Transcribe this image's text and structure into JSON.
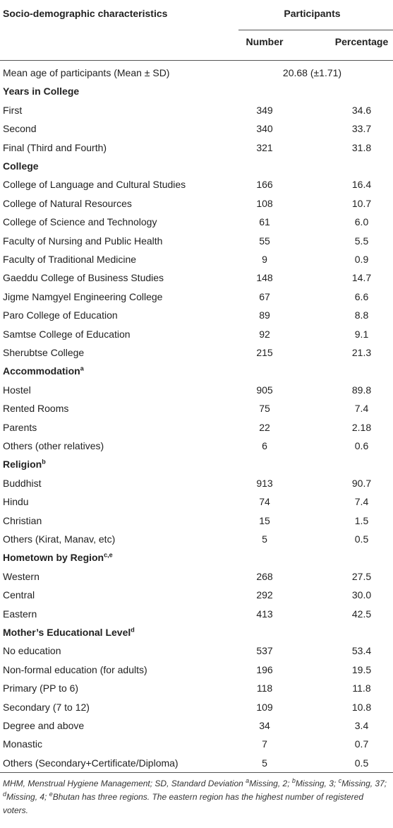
{
  "header": {
    "title": "Socio-demographic characteristics",
    "group": "Participants",
    "col_number": "Number",
    "col_percentage": "Percentage"
  },
  "rows": [
    {
      "label": "Mean age of participants (Mean ± SD)",
      "value": "20.68 (±1.71)"
    },
    {
      "heading": "Years in College"
    },
    {
      "label": "First",
      "number": "349",
      "percentage": "34.6"
    },
    {
      "label": "Second",
      "number": "340",
      "percentage": "33.7"
    },
    {
      "label": "Final (Third and Fourth)",
      "number": "321",
      "percentage": "31.8"
    },
    {
      "heading": "College"
    },
    {
      "label": "College of Language and Cultural Studies",
      "number": "166",
      "percentage": "16.4"
    },
    {
      "label": "College of Natural Resources",
      "number": "108",
      "percentage": "10.7"
    },
    {
      "label": "College of Science and Technology",
      "number": "61",
      "percentage": "6.0"
    },
    {
      "label": "Faculty of Nursing and Public Health",
      "number": "55",
      "percentage": "5.5"
    },
    {
      "label": "Faculty of Traditional Medicine",
      "number": "9",
      "percentage": "0.9"
    },
    {
      "label": "Gaeddu College of Business Studies",
      "number": "148",
      "percentage": "14.7"
    },
    {
      "label": "Jigme Namgyel Engineering College",
      "number": "67",
      "percentage": "6.6"
    },
    {
      "label": "Paro College of Education",
      "number": "89",
      "percentage": "8.8"
    },
    {
      "label": "Samtse College of Education",
      "number": "92",
      "percentage": "9.1"
    },
    {
      "label": "Sherubtse College",
      "number": "215",
      "percentage": "21.3"
    },
    {
      "heading": "Accommodation",
      "sup": "a"
    },
    {
      "label": "Hostel",
      "number": "905",
      "percentage": "89.8"
    },
    {
      "label": "Rented Rooms",
      "number": "75",
      "percentage": "7.4"
    },
    {
      "label": "Parents",
      "number": "22",
      "percentage": "2.18"
    },
    {
      "label": "Others (other relatives)",
      "number": "6",
      "percentage": "0.6"
    },
    {
      "heading": "Religion",
      "sup": "b"
    },
    {
      "label": "Buddhist",
      "number": "913",
      "percentage": "90.7"
    },
    {
      "label": "Hindu",
      "number": "74",
      "percentage": "7.4"
    },
    {
      "label": "Christian",
      "number": "15",
      "percentage": "1.5"
    },
    {
      "label": "Others (Kirat, Manav, etc)",
      "number": "5",
      "percentage": "0.5"
    },
    {
      "heading": "Hometown by Region",
      "sup": "c,e"
    },
    {
      "label": "Western",
      "number": "268",
      "percentage": "27.5"
    },
    {
      "label": "Central",
      "number": "292",
      "percentage": "30.0"
    },
    {
      "label": "Eastern",
      "number": "413",
      "percentage": "42.5"
    },
    {
      "heading": "Mother’s Educational Level",
      "sup": "d"
    },
    {
      "label": "No education",
      "number": "537",
      "percentage": "53.4"
    },
    {
      "label": "Non-formal education (for adults)",
      "number": "196",
      "percentage": "19.5"
    },
    {
      "label": "Primary (PP to 6)",
      "number": "118",
      "percentage": "11.8"
    },
    {
      "label": "Secondary (7 to 12)",
      "number": "109",
      "percentage": "10.8"
    },
    {
      "label": "Degree and above",
      "number": "34",
      "percentage": "3.4"
    },
    {
      "label": "Monastic",
      "number": "7",
      "percentage": "0.7"
    },
    {
      "label": "Others (Secondary+Certificate/Diploma)",
      "number": "5",
      "percentage": "0.5"
    }
  ],
  "footnote": [
    {
      "text": "MHM, Menstrual Hygiene Management; SD, Standard Deviation "
    },
    {
      "sup": "a"
    },
    {
      "text": "Missing, 2; "
    },
    {
      "sup": "b"
    },
    {
      "text": "Missing, 3; "
    },
    {
      "sup": "c"
    },
    {
      "text": "Missing, 37; "
    },
    {
      "sup": "d"
    },
    {
      "text": "Missing, 4; "
    },
    {
      "sup": "e"
    },
    {
      "text": "Bhutan has three regions. The eastern region has the highest number of registered voters."
    }
  ]
}
